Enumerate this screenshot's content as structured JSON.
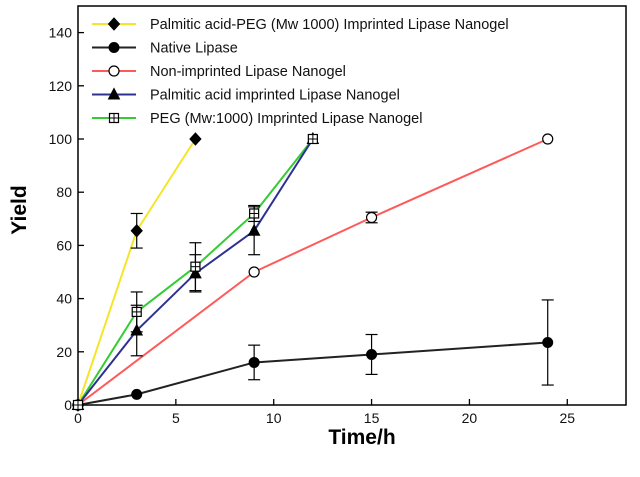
{
  "chart_data": {
    "type": "line",
    "xlabel": "Time/h",
    "ylabel": "Yield",
    "xlim": [
      0,
      28
    ],
    "ylim": [
      0,
      150
    ],
    "xticks": [
      0,
      5,
      10,
      15,
      20,
      25
    ],
    "yticks": [
      0,
      20,
      40,
      60,
      80,
      100,
      120,
      140
    ],
    "grid": false,
    "legend_position": "top-left",
    "series": [
      {
        "name": "Palmitic acid-PEG (Mw 1000) Imprinted Lipase Nanogel",
        "color": "#f5e52a",
        "marker": "diamond",
        "x": [
          0,
          3,
          6
        ],
        "y": [
          0,
          65.5,
          100
        ],
        "err": [
          0,
          6.5,
          0
        ]
      },
      {
        "name": "Native Lipase",
        "color": "#222222",
        "marker": "circle",
        "x": [
          0,
          3,
          9,
          15,
          24
        ],
        "y": [
          0,
          4,
          16,
          19,
          23.5
        ],
        "err": [
          0,
          0,
          6.5,
          7.5,
          16
        ]
      },
      {
        "name": "Non-imprinted Lipase Nanogel",
        "color": "#ff5a5a",
        "marker": "circle-open",
        "x": [
          0,
          9,
          15,
          24
        ],
        "y": [
          0,
          50,
          70.5,
          100
        ],
        "err": [
          0,
          0,
          2,
          0
        ]
      },
      {
        "name": "Palmitic acid imprinted Lipase Nanogel",
        "color": "#2e3192",
        "marker": "triangle",
        "x": [
          0,
          3,
          6,
          9,
          12
        ],
        "y": [
          0,
          28,
          49.5,
          65.5,
          100
        ],
        "err": [
          0,
          9.5,
          7,
          9,
          0
        ]
      },
      {
        "name": "PEG (Mw:1000) Imprinted Lipase Nanogel",
        "color": "#33cc33",
        "marker": "square-cross",
        "x": [
          0,
          3,
          6,
          9,
          12
        ],
        "y": [
          0,
          35,
          52,
          72,
          100
        ],
        "err": [
          0,
          7.5,
          9,
          3,
          0
        ]
      }
    ]
  }
}
